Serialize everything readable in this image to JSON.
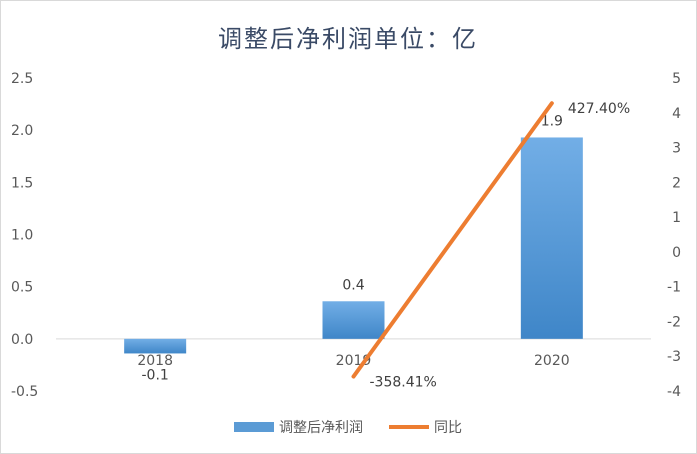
{
  "chart_data": {
    "type": "bar",
    "title": "调整后净利润单位：亿",
    "categories": [
      "2018",
      "2019",
      "2020"
    ],
    "series": [
      {
        "name": "调整后净利润",
        "type": "bar",
        "axis": "left",
        "values": [
          -0.14,
          0.36,
          1.93
        ],
        "data_labels": [
          "-0.1",
          "0.4",
          "1.9"
        ],
        "color": "#5b9bd5"
      },
      {
        "name": "同比",
        "type": "line",
        "axis": "right",
        "values": [
          null,
          -3.5841,
          4.274
        ],
        "data_labels": [
          "",
          "-358.41%",
          "427.40%"
        ],
        "color": "#ed7d31"
      }
    ],
    "y_left": {
      "min": -0.5,
      "max": 2.5,
      "ticks": [
        "-0.5",
        "0.0",
        "0.5",
        "1.0",
        "1.5",
        "2.0",
        "2.5"
      ]
    },
    "y_right": {
      "min": -4,
      "max": 5,
      "ticks": [
        "-4",
        "-3",
        "-2",
        "-1",
        "0",
        "1",
        "2",
        "3",
        "4",
        "5"
      ]
    },
    "grid": false,
    "legend": "bottom"
  }
}
